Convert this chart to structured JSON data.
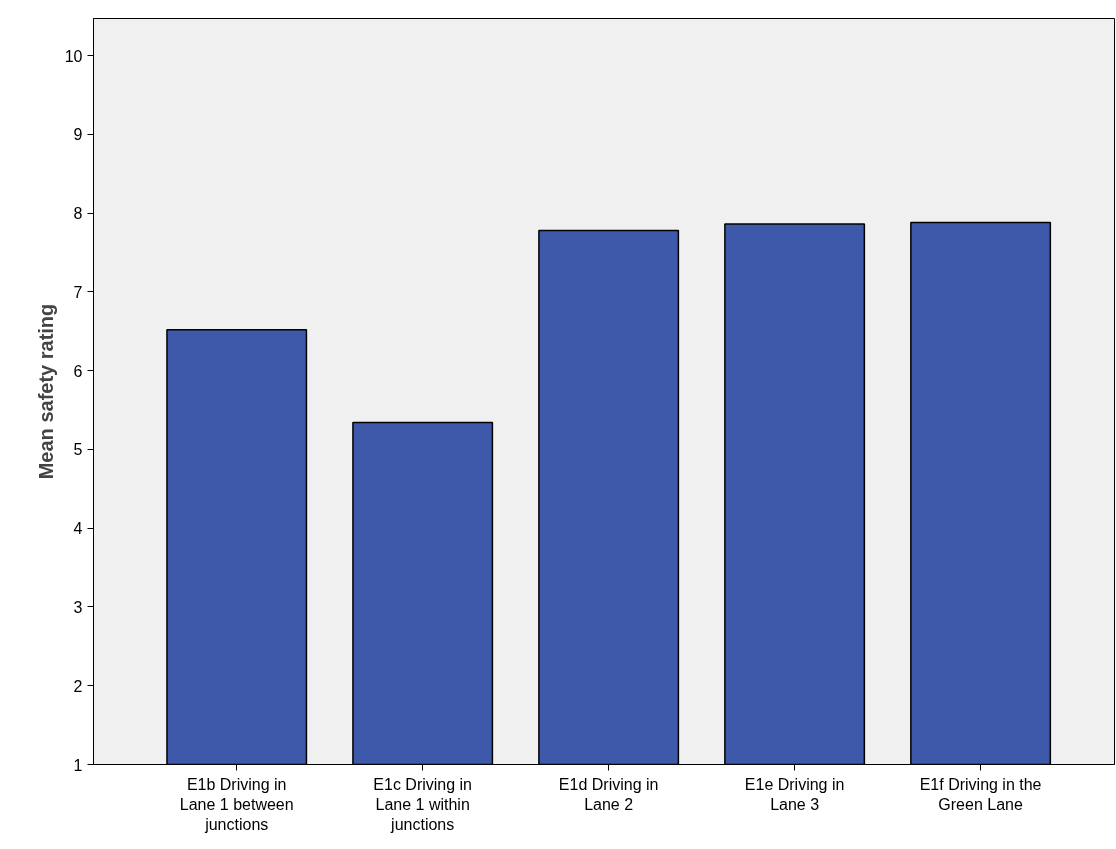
{
  "chart_data": {
    "type": "bar",
    "ylabel": "Mean safety rating",
    "categories": [
      "E1b Driving in Lane 1 between junctions",
      "E1c Driving in Lane 1 within junctions",
      "E1d Driving in Lane 2",
      "E1e Driving in Lane 3",
      "E1f Driving in the Green Lane"
    ],
    "values": [
      6.52,
      5.34,
      7.78,
      7.86,
      7.88
    ],
    "color": "#3e58aa",
    "ylim": [
      1,
      10.47
    ],
    "yticks": [
      1,
      2,
      3,
      4,
      5,
      6,
      7,
      8,
      9,
      10
    ],
    "grid": false
  }
}
